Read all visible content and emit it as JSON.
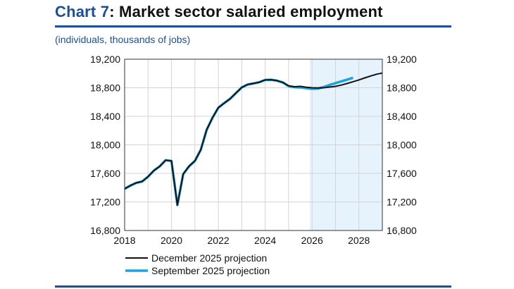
{
  "header": {
    "title_number": "Chart 7",
    "title_sep": ":",
    "title_text": " Market sector salaried employment",
    "subtitle": "(individuals, thousands of jobs)"
  },
  "colors": {
    "accent": "#1b4f9c",
    "december": "#111111",
    "september": "#1aa3e0",
    "projection_shade": "#e6f3fc",
    "grid": "#d4d4d4"
  },
  "chart_data": {
    "type": "line",
    "title": "Chart 7: Market sector salaried employment",
    "ylabel": "(individuals, thousands of jobs)",
    "xlim": [
      2018,
      2029
    ],
    "ylim": [
      16800,
      19200
    ],
    "x_ticks": [
      "2018",
      "2020",
      "2022",
      "2024",
      "2026",
      "2028"
    ],
    "y_ticks": [
      "16,800",
      "17,200",
      "17,600",
      "18,000",
      "18,400",
      "18,800",
      "19,200"
    ],
    "y_axis_sides": "left and right",
    "grid": true,
    "projection_shade_from": 2025.9,
    "legend_position": "bottom",
    "x": [
      2018.0,
      2018.25,
      2018.5,
      2018.75,
      2019.0,
      2019.25,
      2019.5,
      2019.75,
      2020.0,
      2020.25,
      2020.5,
      2020.75,
      2021.0,
      2021.25,
      2021.5,
      2021.75,
      2022.0,
      2022.25,
      2022.5,
      2022.75,
      2023.0,
      2023.25,
      2023.5,
      2023.75,
      2024.0,
      2024.25,
      2024.5,
      2024.75,
      2025.0,
      2025.25,
      2025.5,
      2025.75,
      2026.0,
      2026.25,
      2026.5,
      2026.75,
      2027.0,
      2027.25,
      2027.5,
      2027.75,
      2028.0,
      2028.25,
      2028.5,
      2028.75,
      2029.0
    ],
    "series": [
      {
        "name": "September 2025 projection",
        "values": [
          17384,
          17430,
          17468,
          17487,
          17555,
          17640,
          17700,
          17785,
          17775,
          17157,
          17590,
          17700,
          17775,
          17930,
          18210,
          18380,
          18520,
          18585,
          18645,
          18725,
          18805,
          18845,
          18860,
          18878,
          18910,
          18913,
          18900,
          18875,
          18822,
          18808,
          18805,
          18795,
          18785,
          18788,
          18810,
          18840,
          18865,
          18890,
          18915,
          18940,
          null,
          null,
          null,
          null,
          null
        ]
      },
      {
        "name": "December 2025 projection",
        "values": [
          17384,
          17430,
          17468,
          17487,
          17555,
          17640,
          17700,
          17785,
          17775,
          17157,
          17590,
          17700,
          17775,
          17930,
          18210,
          18380,
          18520,
          18585,
          18645,
          18725,
          18805,
          18845,
          18860,
          18878,
          18910,
          18913,
          18900,
          18875,
          18828,
          18815,
          18820,
          18808,
          18800,
          18797,
          18800,
          18810,
          18820,
          18838,
          18860,
          18885,
          18910,
          18938,
          18965,
          18990,
          19005
        ]
      }
    ],
    "legend": [
      "December 2025 projection",
      "September 2025 projection"
    ]
  }
}
